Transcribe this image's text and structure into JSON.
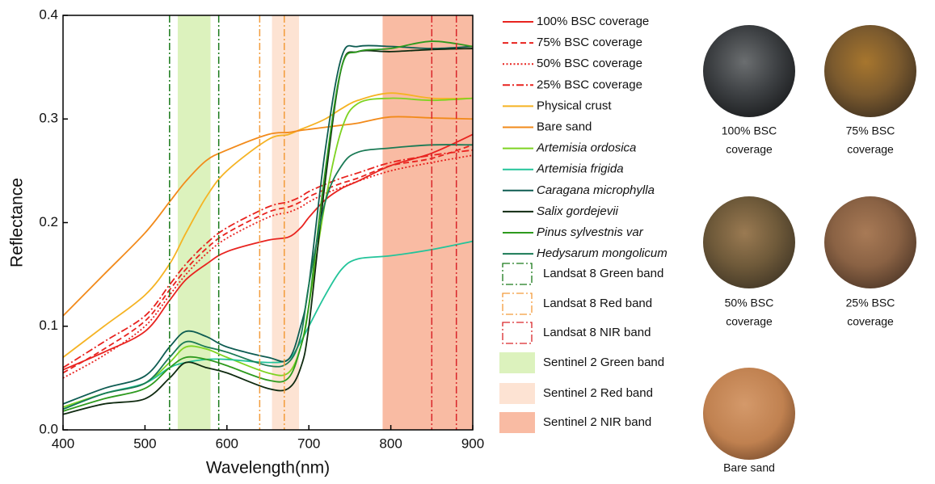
{
  "chart_data": {
    "type": "line",
    "xlabel": "Wavelength(nm)",
    "ylabel": "Reflectance",
    "xlim": [
      400,
      900
    ],
    "ylim": [
      0,
      0.4
    ],
    "xticks": [
      400,
      500,
      600,
      700,
      800,
      900
    ],
    "yticks": [
      {
        "value": 0,
        "label": "0.0"
      },
      0.1,
      0.2,
      0.3,
      0.4
    ],
    "x": [
      400,
      450,
      500,
      530,
      550,
      575,
      600,
      650,
      675,
      690,
      700,
      720,
      740,
      760,
      800,
      850,
      900
    ],
    "series": [
      {
        "name": "100% BSC coverage",
        "color": "#e8231f",
        "dash": "solid",
        "values": [
          0.058,
          0.075,
          0.095,
          0.125,
          0.145,
          0.16,
          0.172,
          0.183,
          0.186,
          0.195,
          0.205,
          0.222,
          0.233,
          0.24,
          0.255,
          0.267,
          0.285
        ]
      },
      {
        "name": "75% BSC coverage",
        "color": "#e8231f",
        "dash": "dashed",
        "values": [
          0.055,
          0.078,
          0.105,
          0.135,
          0.155,
          0.175,
          0.19,
          0.21,
          0.215,
          0.22,
          0.225,
          0.232,
          0.238,
          0.243,
          0.255,
          0.262,
          0.275
        ]
      },
      {
        "name": "50% BSC coverage",
        "color": "#e8231f",
        "dash": "dotted",
        "values": [
          0.05,
          0.072,
          0.1,
          0.13,
          0.15,
          0.17,
          0.185,
          0.205,
          0.21,
          0.215,
          0.22,
          0.228,
          0.234,
          0.24,
          0.25,
          0.258,
          0.265
        ]
      },
      {
        "name": "25% BSC coverage",
        "color": "#e8231f",
        "dash": "dashdot",
        "values": [
          0.06,
          0.085,
          0.11,
          0.14,
          0.16,
          0.18,
          0.195,
          0.215,
          0.22,
          0.225,
          0.23,
          0.237,
          0.243,
          0.248,
          0.258,
          0.265,
          0.27
        ]
      },
      {
        "name": "Physical crust",
        "color": "#f5b323",
        "dash": "solid",
        "values": [
          0.07,
          0.1,
          0.13,
          0.16,
          0.19,
          0.225,
          0.25,
          0.28,
          0.285,
          0.29,
          0.293,
          0.3,
          0.31,
          0.318,
          0.325,
          0.32,
          0.32
        ]
      },
      {
        "name": "Bare sand",
        "color": "#f28a1a",
        "dash": "solid",
        "values": [
          0.11,
          0.15,
          0.19,
          0.22,
          0.24,
          0.26,
          0.27,
          0.285,
          0.287,
          0.289,
          0.29,
          0.292,
          0.294,
          0.296,
          0.302,
          0.301,
          0.3
        ]
      },
      {
        "name": "Artemisia ordosica",
        "color": "#7ed321",
        "dash": "solid",
        "font_style": "italic",
        "values": [
          0.022,
          0.035,
          0.045,
          0.065,
          0.08,
          0.078,
          0.07,
          0.055,
          0.055,
          0.08,
          0.12,
          0.22,
          0.29,
          0.315,
          0.32,
          0.318,
          0.32
        ]
      },
      {
        "name": "Artemisia frigida",
        "color": "#23c49a",
        "dash": "solid",
        "font_style": "italic",
        "values": [
          0.02,
          0.035,
          0.045,
          0.06,
          0.065,
          0.068,
          0.068,
          0.065,
          0.068,
          0.085,
          0.1,
          0.13,
          0.155,
          0.165,
          0.168,
          0.174,
          0.182
        ]
      },
      {
        "name": "Caragana microphylla",
        "color": "#0e5c52",
        "dash": "solid",
        "font_style": "italic",
        "values": [
          0.025,
          0.04,
          0.052,
          0.08,
          0.095,
          0.09,
          0.08,
          0.07,
          0.068,
          0.1,
          0.14,
          0.27,
          0.36,
          0.37,
          0.37,
          0.368,
          0.37
        ]
      },
      {
        "name": "Salix gordejevii",
        "color": "#0f2a10",
        "dash": "solid",
        "font_style": "italic",
        "values": [
          0.015,
          0.025,
          0.03,
          0.05,
          0.065,
          0.06,
          0.055,
          0.04,
          0.04,
          0.06,
          0.1,
          0.24,
          0.35,
          0.365,
          0.365,
          0.367,
          0.368
        ]
      },
      {
        "name": "Pinus sylvestnis var",
        "color": "#2e9a1e",
        "dash": "solid",
        "font_style": "italic",
        "values": [
          0.018,
          0.03,
          0.04,
          0.06,
          0.07,
          0.068,
          0.062,
          0.048,
          0.05,
          0.08,
          0.12,
          0.25,
          0.35,
          0.365,
          0.368,
          0.375,
          0.37
        ]
      },
      {
        "name": "Hedysarum mongolicum",
        "color": "#1a7a55",
        "dash": "solid",
        "font_style": "italic",
        "values": [
          0.02,
          0.035,
          0.045,
          0.07,
          0.085,
          0.08,
          0.075,
          0.062,
          0.065,
          0.09,
          0.14,
          0.22,
          0.255,
          0.268,
          0.272,
          0.275,
          0.275
        ]
      }
    ],
    "bands": [
      {
        "name": "Landsat 8 Green band",
        "kind": "lines",
        "color": "#1a7a1a",
        "range": [
          530,
          590
        ]
      },
      {
        "name": "Landsat 8 Red band",
        "kind": "lines",
        "color": "#f39c3b",
        "range": [
          640,
          670
        ]
      },
      {
        "name": "Landsat 8 NIR band",
        "kind": "lines",
        "color": "#d9262a",
        "range": [
          850,
          880
        ]
      },
      {
        "name": "Sentinel 2 Green band",
        "kind": "fill",
        "color": "#dcf2bd",
        "range": [
          540,
          580
        ]
      },
      {
        "name": "Sentinel 2 Red band",
        "kind": "fill",
        "color": "#fde3d3",
        "range": [
          655,
          688
        ]
      },
      {
        "name": "Sentinel 2 NIR band",
        "kind": "fill",
        "color": "#f9bba3",
        "range": [
          790,
          900
        ]
      }
    ]
  },
  "photos": [
    {
      "caption": [
        "100% BSC",
        "coverage"
      ]
    },
    {
      "caption": [
        "75% BSC",
        "coverage"
      ]
    },
    {
      "caption": [
        "50% BSC",
        "coverage"
      ]
    },
    {
      "caption": [
        "25% BSC",
        "coverage"
      ]
    },
    {
      "caption": [
        "Bare sand"
      ]
    }
  ]
}
